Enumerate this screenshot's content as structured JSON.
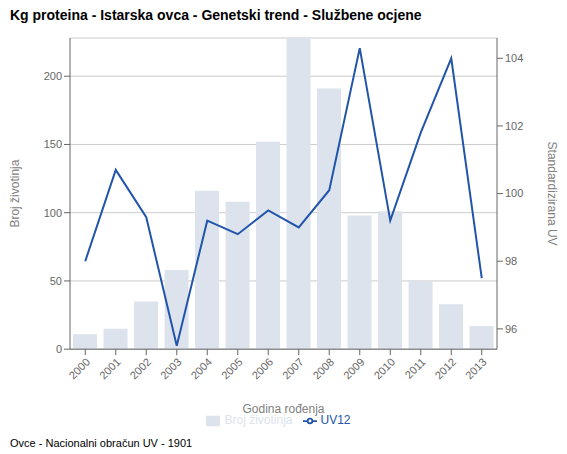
{
  "chart_data": {
    "type": "bar",
    "title": "Kg proteina - Istarska ovca - Genetski trend - Službene ocjene",
    "xlabel": "Godina rođenja",
    "ylabel": "Broj životinja",
    "y2label": "Standardizirana UV",
    "footnote": "Ovce - Nacionalni obračun UV - 1901",
    "categories": [
      "2000",
      "2001",
      "2002",
      "2003",
      "2004",
      "2005",
      "2006",
      "2007",
      "2008",
      "2009",
      "2010",
      "2011",
      "2012",
      "2013"
    ],
    "series": [
      {
        "name": "Broj životinja",
        "type": "bar",
        "color": "#dce3ed",
        "values": [
          11,
          15,
          35,
          58,
          116,
          108,
          152,
          228,
          191,
          98,
          101,
          50,
          33,
          17
        ]
      },
      {
        "name": "UV12",
        "type": "line",
        "color": "#2255aa",
        "axis": "y2",
        "values": [
          98.0,
          100.7,
          99.3,
          95.5,
          99.2,
          98.8,
          99.5,
          99.0,
          100.1,
          104.3,
          99.2,
          101.8,
          104.0,
          97.5
        ]
      }
    ],
    "ylim": [
      0,
      228
    ],
    "yticks": [
      0,
      50,
      100,
      150,
      200
    ],
    "y2lim": [
      95.4,
      104.6
    ],
    "y2ticks": [
      96,
      98,
      100,
      102,
      104
    ],
    "grid": true,
    "legend": "bottom"
  }
}
